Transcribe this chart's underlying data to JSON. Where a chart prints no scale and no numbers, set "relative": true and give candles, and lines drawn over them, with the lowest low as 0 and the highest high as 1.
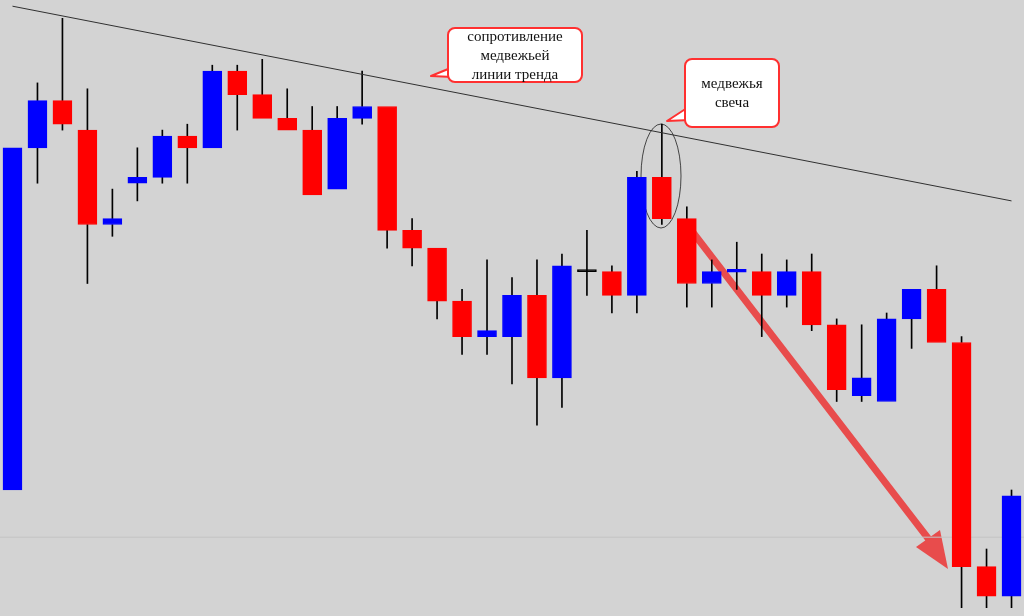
{
  "chart_data": {
    "type": "candlestick",
    "relative": true,
    "tick_labels": false,
    "grid": false,
    "legend": false,
    "categories": [
      null,
      null,
      null,
      null,
      null,
      null,
      null,
      null,
      null,
      null,
      null,
      null,
      null,
      null,
      null,
      null,
      null,
      null,
      null,
      null,
      null,
      null,
      null,
      null,
      null,
      null,
      null,
      null,
      null,
      null,
      null,
      null,
      null,
      null,
      null,
      null,
      null,
      null,
      null,
      null,
      null
    ],
    "ohlc": [
      [
        0.2,
        0.78,
        0.2,
        0.78
      ],
      [
        0.78,
        0.89,
        0.72,
        0.86
      ],
      [
        0.86,
        1,
        0.81,
        0.82
      ],
      [
        0.81,
        0.88,
        0.55,
        0.65
      ],
      [
        0.65,
        0.71,
        0.63,
        0.66
      ],
      [
        0.72,
        0.78,
        0.69,
        0.73
      ],
      [
        0.73,
        0.81,
        0.72,
        0.8
      ],
      [
        0.8,
        0.82,
        0.72,
        0.78
      ],
      [
        0.78,
        0.92,
        0.78,
        0.91
      ],
      [
        0.91,
        0.92,
        0.81,
        0.87
      ],
      [
        0.87,
        0.93,
        0.83,
        0.83
      ],
      [
        0.83,
        0.88,
        0.81,
        0.81
      ],
      [
        0.81,
        0.85,
        0.7,
        0.7
      ],
      [
        0.71,
        0.85,
        0.71,
        0.83
      ],
      [
        0.83,
        0.91,
        0.82,
        0.85
      ],
      [
        0.85,
        0.85,
        0.61,
        0.64
      ],
      [
        0.64,
        0.66,
        0.58,
        0.61
      ],
      [
        0.61,
        0.61,
        0.49,
        0.52
      ],
      [
        0.52,
        0.54,
        0.43,
        0.46
      ],
      [
        0.46,
        0.59,
        0.43,
        0.47
      ],
      [
        0.46,
        0.56,
        0.38,
        0.53
      ],
      [
        0.53,
        0.59,
        0.31,
        0.39
      ],
      [
        0.39,
        0.6,
        0.34,
        0.58
      ],
      [
        0.57,
        0.64,
        0.53,
        0.57
      ],
      [
        0.57,
        0.58,
        0.5,
        0.53
      ],
      [
        0.53,
        0.74,
        0.5,
        0.73
      ],
      [
        0.73,
        0.82,
        0.65,
        0.66
      ],
      [
        0.66,
        0.68,
        0.51,
        0.55
      ],
      [
        0.55,
        0.59,
        0.51,
        0.57
      ],
      [
        0.569,
        0.62,
        0.54,
        0.574
      ],
      [
        0.57,
        0.6,
        0.46,
        0.53
      ],
      [
        0.53,
        0.59,
        0.51,
        0.57
      ],
      [
        0.57,
        0.6,
        0.47,
        0.48
      ],
      [
        0.48,
        0.49,
        0.35,
        0.37
      ],
      [
        0.36,
        0.48,
        0.35,
        0.39
      ],
      [
        0.35,
        0.5,
        0.35,
        0.49
      ],
      [
        0.49,
        0.54,
        0.44,
        0.54
      ],
      [
        0.54,
        0.58,
        0.45,
        0.45
      ],
      [
        0.45,
        0.46,
        0,
        0.07
      ],
      [
        0.07,
        0.1,
        0,
        0.02
      ],
      [
        0.02,
        0.2,
        0,
        0.19
      ]
    ],
    "colors": [
      "#0000ff",
      "#0000ff",
      "#ff0000",
      "#ff0000",
      "#0000ff",
      "#0000ff",
      "#0000ff",
      "#ff0000",
      "#0000ff",
      "#ff0000",
      "#ff0000",
      "#ff0000",
      "#ff0000",
      "#0000ff",
      "#0000ff",
      "#ff0000",
      "#ff0000",
      "#ff0000",
      "#ff0000",
      "#0000ff",
      "#0000ff",
      "#ff0000",
      "#0000ff",
      "#000000",
      "#ff0000",
      "#0000ff",
      "#ff0000",
      "#ff0000",
      "#0000ff",
      "#0000ff",
      "#ff0000",
      "#0000ff",
      "#ff0000",
      "#ff0000",
      "#0000ff",
      "#0000ff",
      "#0000ff",
      "#ff0000",
      "#ff0000",
      "#ff0000",
      "#0000ff"
    ],
    "series": [
      {
        "type": "line",
        "color": "#303030",
        "values": [
          1.02,
          null,
          null,
          null,
          null,
          null,
          null,
          null,
          null,
          null,
          null,
          null,
          null,
          null,
          null,
          null,
          null,
          null,
          null,
          null,
          null,
          null,
          null,
          null,
          null,
          null,
          null,
          null,
          null,
          null,
          null,
          null,
          null,
          null,
          null,
          null,
          null,
          null,
          null,
          null,
          0.69
        ]
      }
    ],
    "ref_lines": [
      {
        "axis": "y",
        "value": 0.12,
        "color": "#c4c4c4"
      }
    ],
    "annotations": [
      "сопротивление\nмедвежьей\nлинии тренда",
      "медвежья\nсвеча"
    ]
  }
}
